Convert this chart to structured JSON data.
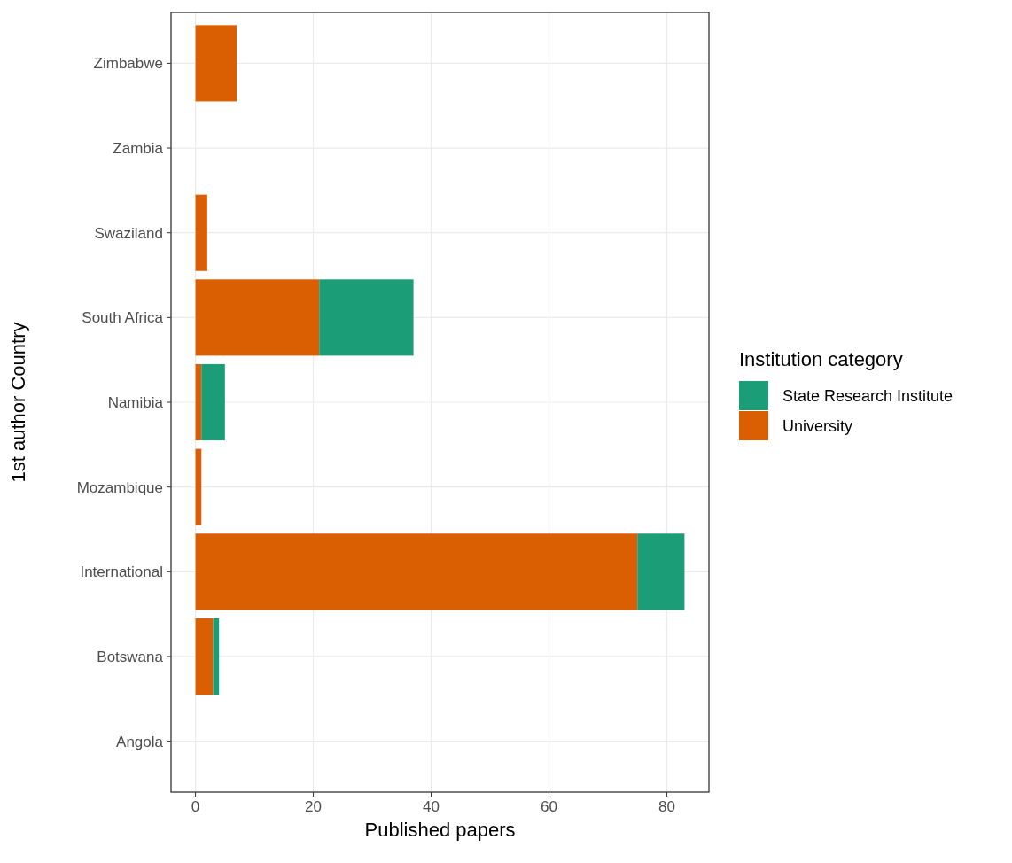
{
  "chart_data": {
    "type": "bar",
    "orientation": "horizontal",
    "stacked": true,
    "xlabel": "Published papers",
    "ylabel": "1st author Country",
    "legend_title": "Institution category",
    "categories": [
      "Zimbabwe",
      "Zambia",
      "Swaziland",
      "South Africa",
      "Namibia",
      "Mozambique",
      "International",
      "Botswana",
      "Angola"
    ],
    "series": [
      {
        "name": "University",
        "color": "#d95f02",
        "values": [
          7,
          0,
          2,
          21,
          1,
          1,
          75,
          3,
          0
        ]
      },
      {
        "name": "State Research Institute",
        "color": "#1b9e77",
        "values": [
          0,
          0,
          0,
          16,
          4,
          0,
          8,
          1,
          0
        ]
      }
    ],
    "xlim": [
      -4.15,
      87.15
    ],
    "xticks": [
      0,
      20,
      40,
      60,
      80
    ],
    "grid": true,
    "legend": "right"
  }
}
